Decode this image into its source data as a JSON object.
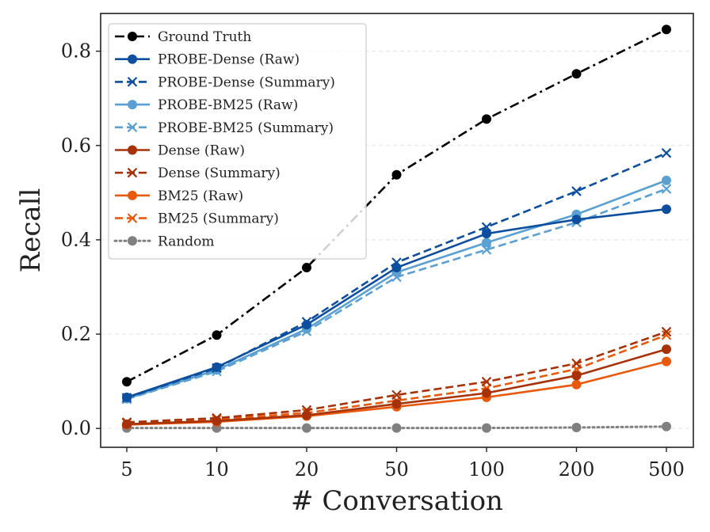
{
  "chart_data": {
    "type": "line",
    "title": "",
    "xlabel": "# Conversation",
    "ylabel": "Recall",
    "categories": [
      "5",
      "10",
      "20",
      "50",
      "100",
      "200",
      "500"
    ],
    "ylim": [
      -0.04,
      0.88
    ],
    "yticks": [
      0.0,
      0.2,
      0.4,
      0.6,
      0.8
    ],
    "ytick_labels": [
      "0.0",
      "0.2",
      "0.4",
      "0.6",
      "0.8"
    ],
    "grid": "horizontal dashed",
    "legend_position": "top-left",
    "series": [
      {
        "name": "Ground Truth",
        "color": "#000000",
        "dash": "dashdot",
        "marker": "circle",
        "values": [
          0.099,
          0.198,
          0.341,
          0.538,
          0.656,
          0.752,
          0.846
        ]
      },
      {
        "name": "PROBE-Dense (Raw)",
        "color": "#0d4f9e",
        "dash": "solid",
        "marker": "circle",
        "values": [
          0.066,
          0.13,
          0.22,
          0.341,
          0.413,
          0.443,
          0.465
        ]
      },
      {
        "name": "PROBE-Dense (Summary)",
        "color": "#0d4f9e",
        "dash": "dashed",
        "marker": "x",
        "values": [
          0.065,
          0.128,
          0.226,
          0.352,
          0.427,
          0.503,
          0.584
        ]
      },
      {
        "name": "PROBE-BM25 (Raw)",
        "color": "#5aa0d2",
        "dash": "solid",
        "marker": "circle",
        "values": [
          0.063,
          0.124,
          0.211,
          0.331,
          0.394,
          0.454,
          0.526
        ]
      },
      {
        "name": "PROBE-BM25 (Summary)",
        "color": "#5aa0d2",
        "dash": "dashed",
        "marker": "x",
        "values": [
          0.062,
          0.121,
          0.206,
          0.321,
          0.379,
          0.437,
          0.508
        ]
      },
      {
        "name": "Dense (Raw)",
        "color": "#a83208",
        "dash": "solid",
        "marker": "circle",
        "values": [
          0.009,
          0.016,
          0.028,
          0.052,
          0.075,
          0.112,
          0.168
        ]
      },
      {
        "name": "Dense (Summary)",
        "color": "#a83208",
        "dash": "dashed",
        "marker": "x",
        "values": [
          0.013,
          0.022,
          0.039,
          0.071,
          0.099,
          0.138,
          0.205
        ]
      },
      {
        "name": "BM25 (Raw)",
        "color": "#e8590c",
        "dash": "solid",
        "marker": "circle",
        "values": [
          0.008,
          0.014,
          0.026,
          0.046,
          0.066,
          0.093,
          0.142
        ]
      },
      {
        "name": "BM25 (Summary)",
        "color": "#e8590c",
        "dash": "dashed",
        "marker": "x",
        "values": [
          0.011,
          0.019,
          0.033,
          0.059,
          0.085,
          0.126,
          0.198
        ]
      },
      {
        "name": "Random",
        "color": "#808080",
        "dash": "dotted",
        "marker": "circle",
        "values": [
          0.001,
          0.001,
          0.001,
          0.001,
          0.001,
          0.002,
          0.004
        ]
      }
    ]
  }
}
